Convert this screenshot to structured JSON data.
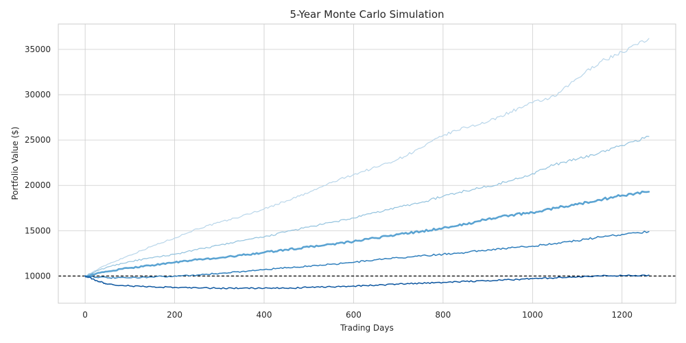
{
  "chart_data": {
    "type": "line",
    "title": "5-Year Monte Carlo Simulation",
    "xlabel": "Trading Days",
    "ylabel": "Portfolio Value ($)",
    "xlim": [
      -60,
      1320
    ],
    "ylim": [
      7000,
      37800
    ],
    "x_ticks": [
      0,
      200,
      400,
      600,
      800,
      1000,
      1200
    ],
    "y_ticks": [
      10000,
      15000,
      20000,
      25000,
      30000,
      35000
    ],
    "grid": true,
    "legend": "none",
    "reference_line": {
      "y": 10000,
      "style": "dashed",
      "color": "#000000"
    },
    "series": [
      {
        "color": "#b9d6ea",
        "x": [
          0,
          50,
          100,
          150,
          200,
          250,
          300,
          350,
          400,
          450,
          500,
          550,
          600,
          650,
          700,
          750,
          800,
          850,
          900,
          950,
          1000,
          1050,
          1100,
          1150,
          1200,
          1260
        ],
        "values": [
          10000,
          11300,
          12300,
          13300,
          14200,
          15200,
          15900,
          16600,
          17400,
          18300,
          19200,
          20300,
          21200,
          22000,
          22900,
          24100,
          25500,
          26400,
          27000,
          28100,
          29100,
          29800,
          31800,
          33600,
          34700,
          36200
        ]
      },
      {
        "color": "#92c2de",
        "x": [
          0,
          50,
          100,
          150,
          200,
          250,
          300,
          350,
          400,
          450,
          500,
          550,
          600,
          650,
          700,
          750,
          800,
          850,
          900,
          950,
          1000,
          1050,
          1100,
          1150,
          1200,
          1260
        ],
        "values": [
          10000,
          11000,
          11600,
          12000,
          12400,
          12900,
          13400,
          13900,
          14300,
          14900,
          15400,
          15900,
          16400,
          17000,
          17600,
          18100,
          18800,
          19400,
          19900,
          20500,
          21300,
          22300,
          22900,
          23600,
          24400,
          25400
        ]
      },
      {
        "color": "#5aa3d2",
        "x": [
          0,
          50,
          100,
          150,
          200,
          250,
          300,
          350,
          400,
          450,
          500,
          550,
          600,
          650,
          700,
          750,
          800,
          850,
          900,
          950,
          1000,
          1050,
          1100,
          1150,
          1200,
          1260
        ],
        "values": [
          10000,
          10500,
          10900,
          11200,
          11500,
          11800,
          12000,
          12300,
          12600,
          12900,
          13200,
          13500,
          13800,
          14200,
          14600,
          14900,
          15300,
          15700,
          16300,
          16700,
          17000,
          17500,
          17900,
          18400,
          18900,
          19300
        ]
      },
      {
        "color": "#2e7ebc",
        "x": [
          0,
          50,
          100,
          150,
          200,
          250,
          300,
          350,
          400,
          450,
          500,
          550,
          600,
          650,
          700,
          750,
          800,
          850,
          900,
          950,
          1000,
          1050,
          1100,
          1150,
          1200,
          1260
        ],
        "values": [
          10000,
          9800,
          9800,
          9900,
          10000,
          10100,
          10300,
          10500,
          10700,
          10900,
          11100,
          11300,
          11500,
          11800,
          12000,
          12200,
          12400,
          12600,
          12900,
          13100,
          13300,
          13600,
          13900,
          14300,
          14600,
          14900
        ]
      },
      {
        "color": "#0b559f",
        "x": [
          0,
          25,
          50,
          100,
          150,
          200,
          250,
          300,
          350,
          400,
          450,
          500,
          550,
          600,
          650,
          700,
          750,
          800,
          850,
          900,
          950,
          1000,
          1050,
          1100,
          1150,
          1200,
          1260
        ],
        "values": [
          10000,
          9500,
          9100,
          8900,
          8800,
          8750,
          8700,
          8650,
          8650,
          8650,
          8650,
          8750,
          8800,
          8900,
          9000,
          9100,
          9200,
          9300,
          9400,
          9500,
          9600,
          9700,
          9800,
          9900,
          10000,
          10050,
          10100
        ]
      }
    ]
  }
}
